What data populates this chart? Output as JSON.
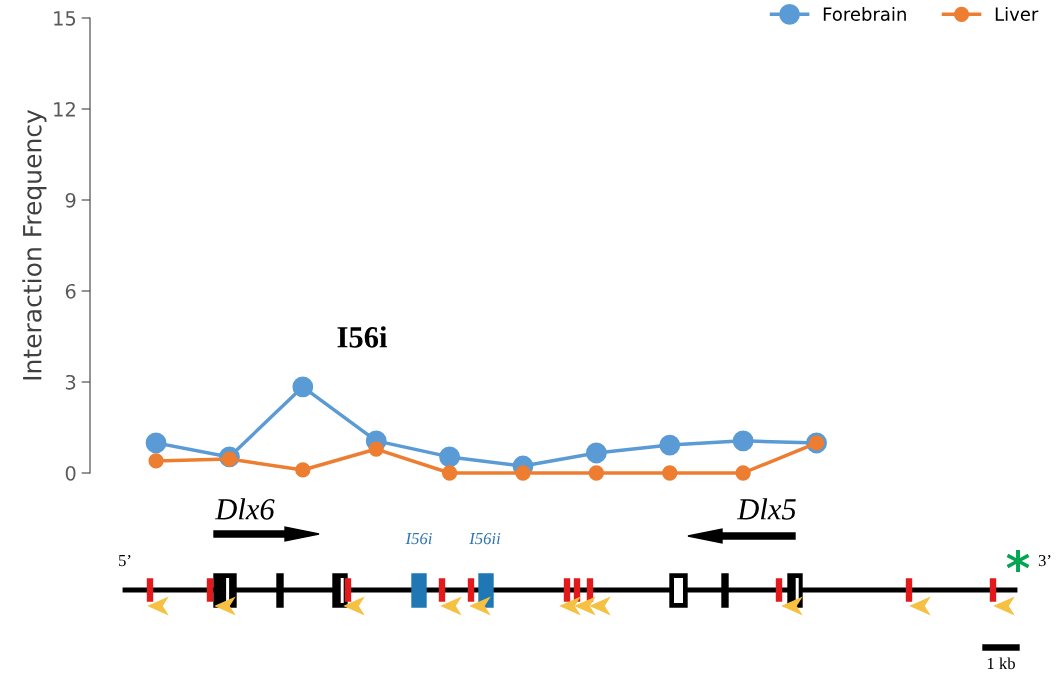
{
  "chart_data": {
    "type": "line",
    "ylabel": "Interaction Frequency",
    "categories": [
      null,
      null,
      null,
      null,
      null,
      null,
      null,
      null,
      null,
      null
    ],
    "series": [
      {
        "name": "Forebrain",
        "color": "#5b9bd5",
        "values": [
          0.99,
          0.53,
          2.84,
          1.06,
          0.53,
          0.23,
          0.66,
          0.92,
          1.06,
          0.99
        ]
      },
      {
        "name": "Liver",
        "color": "#ed7d31",
        "values": [
          0.4,
          0.46,
          0.1,
          0.79,
          0,
          0,
          0,
          0,
          0,
          0.99
        ]
      }
    ],
    "ylim": [
      0,
      15
    ],
    "yticks": [
      0,
      3,
      6,
      9,
      12,
      15
    ],
    "tick_labels": "y",
    "grid": false,
    "legend": "top right",
    "marker": "circle",
    "line_style": "solid",
    "annotations": [
      "I56i",
      "Dlx6",
      "Dlx5",
      "I56i",
      "I56ii",
      "5’",
      "3’",
      "*",
      "1 kb"
    ]
  }
}
